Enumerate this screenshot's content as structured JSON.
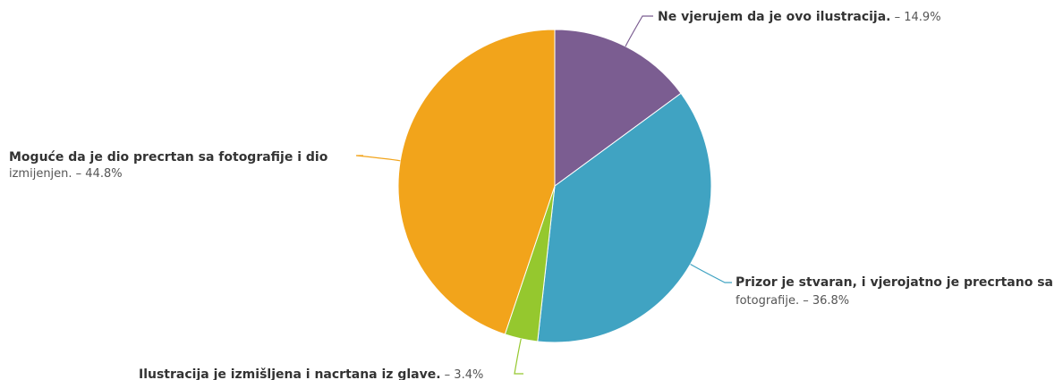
{
  "chart_data": {
    "type": "pie",
    "slices": [
      {
        "name": "Ne vjerujem da je ovo ilustracija.",
        "value_text": " – 14.9%",
        "percent": 14.9,
        "color": "#7b5d91"
      },
      {
        "name_lines": [
          "Prizor je stvaran, i vjerojatno je precrtano sa",
          "fotografije."
        ],
        "value_text": " – 36.8%",
        "percent": 36.8,
        "color": "#40a3c2"
      },
      {
        "name": "Ilustracija je izmišljena i nacrtana iz glave.",
        "value_text": " – 3.4%",
        "percent": 3.4,
        "color": "#95c82e"
      },
      {
        "name_lines": [
          "Moguće da je dio precrtan sa fotografije i dio",
          "izmijenjen."
        ],
        "value_text": " – 44.8%",
        "percent": 44.8,
        "color": "#f2a41b"
      }
    ]
  }
}
